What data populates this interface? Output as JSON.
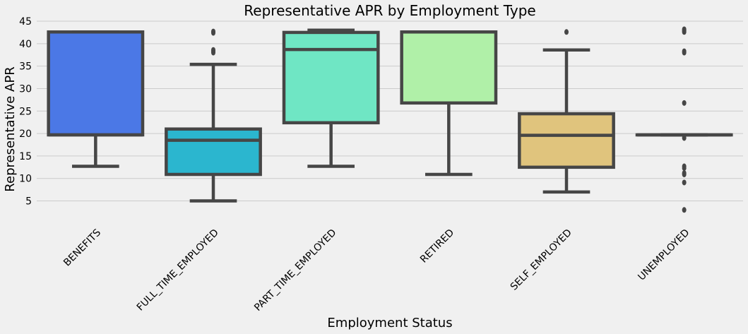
{
  "chart_data": {
    "type": "box",
    "title": "Representative APR by Employment Type",
    "xlabel": "Employment Status",
    "ylabel": "Representative APR",
    "ylim": [
      1,
      45
    ],
    "yticks": [
      5,
      10,
      15,
      20,
      25,
      30,
      35,
      40,
      45
    ],
    "grid": "horizontal",
    "categories": [
      "BENEFITS",
      "FULL_TIME_EMPLOYED",
      "PART_TIME_EMPLOYED",
      "RETIRED",
      "SELF_EMPLOYED",
      "UNEMPLOYED"
    ],
    "box_colors": [
      "#4b78e6",
      "#2bb6cf",
      "#6fe6c4",
      "#b0f0a8",
      "#e0c47d",
      "#e2a4a0"
    ],
    "edge_color": "#464646",
    "boxes": [
      {
        "category": "BENEFITS",
        "whislo": 12.7,
        "q1": 19.7,
        "med": 19.7,
        "q3": 42.6,
        "whishi": 42.6,
        "fliers": []
      },
      {
        "category": "FULL_TIME_EMPLOYED",
        "whislo": 5.0,
        "q1": 10.9,
        "med": 18.5,
        "q3": 21.0,
        "whishi": 35.4,
        "fliers": [
          38.0,
          38.3,
          38.6,
          42.4,
          42.7
        ]
      },
      {
        "category": "PART_TIME_EMPLOYED",
        "whislo": 12.7,
        "q1": 22.4,
        "med": 38.7,
        "q3": 42.5,
        "whishi": 43.0,
        "fliers": []
      },
      {
        "category": "RETIRED",
        "whislo": 10.9,
        "q1": 26.8,
        "med": 42.6,
        "q3": 42.6,
        "whishi": 42.6,
        "fliers": []
      },
      {
        "category": "SELF_EMPLOYED",
        "whislo": 7.0,
        "q1": 12.5,
        "med": 19.6,
        "q3": 24.4,
        "whishi": 38.6,
        "fliers": [
          42.6
        ]
      },
      {
        "category": "UNEMPLOYED",
        "whislo": 19.7,
        "q1": 19.7,
        "med": 19.7,
        "q3": 19.7,
        "whishi": 19.7,
        "fliers": [
          3.0,
          9.1,
          10.9,
          11.2,
          12.3,
          12.7,
          19.0,
          26.8,
          38.0,
          38.3,
          42.6,
          42.9,
          43.2
        ]
      }
    ]
  }
}
